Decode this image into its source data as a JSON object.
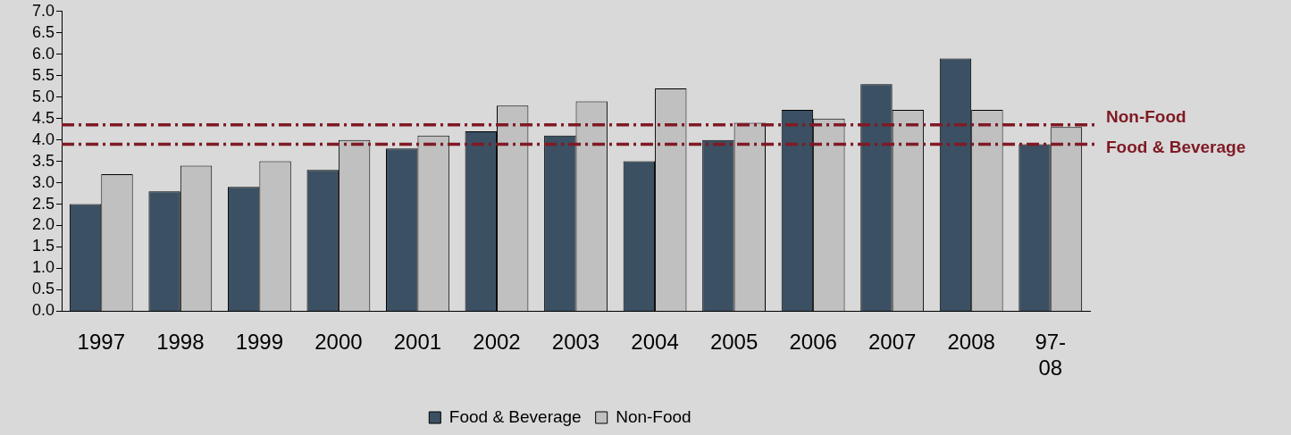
{
  "chart_data": {
    "type": "bar",
    "categories": [
      "1997",
      "1998",
      "1999",
      "2000",
      "2001",
      "2002",
      "2003",
      "2004",
      "2005",
      "2006",
      "2007",
      "2008",
      "97-\n08"
    ],
    "series": [
      {
        "name": "Food & Beverage",
        "color": "#3b5062",
        "values": [
          2.5,
          2.8,
          2.9,
          3.3,
          3.8,
          4.2,
          4.1,
          3.5,
          4.0,
          4.7,
          5.3,
          5.9,
          3.9
        ]
      },
      {
        "name": "Non-Food",
        "color": "#c0c0c0",
        "values": [
          3.2,
          3.4,
          3.5,
          4.0,
          4.1,
          4.8,
          4.9,
          5.2,
          4.4,
          4.5,
          4.7,
          4.7,
          4.3
        ]
      }
    ],
    "ylim": [
      0,
      7
    ],
    "yticks": [
      {
        "value": 0,
        "label": "0.0"
      },
      0.5,
      {
        "value": 1,
        "label": "1.0"
      },
      1.5,
      {
        "value": 2,
        "label": "2.0"
      },
      2.5,
      {
        "value": 3,
        "label": "3.0"
      },
      3.5,
      {
        "value": 4,
        "label": "4.0"
      },
      4.5,
      {
        "value": 5,
        "label": "5.0"
      },
      5.5,
      {
        "value": 6,
        "label": "6.0"
      },
      6.5,
      {
        "value": 7,
        "label": "7.0"
      }
    ],
    "ref_lines": [
      {
        "axis": "y",
        "value": 4.35,
        "label": "Non-Food",
        "color": "#7f1a24",
        "line_style": "dashdot"
      },
      {
        "axis": "y",
        "value": 3.9,
        "label": "Food & Beverage",
        "color": "#7f1a24",
        "line_style": "dashdot"
      }
    ],
    "grid": false,
    "legend": "bottom"
  }
}
